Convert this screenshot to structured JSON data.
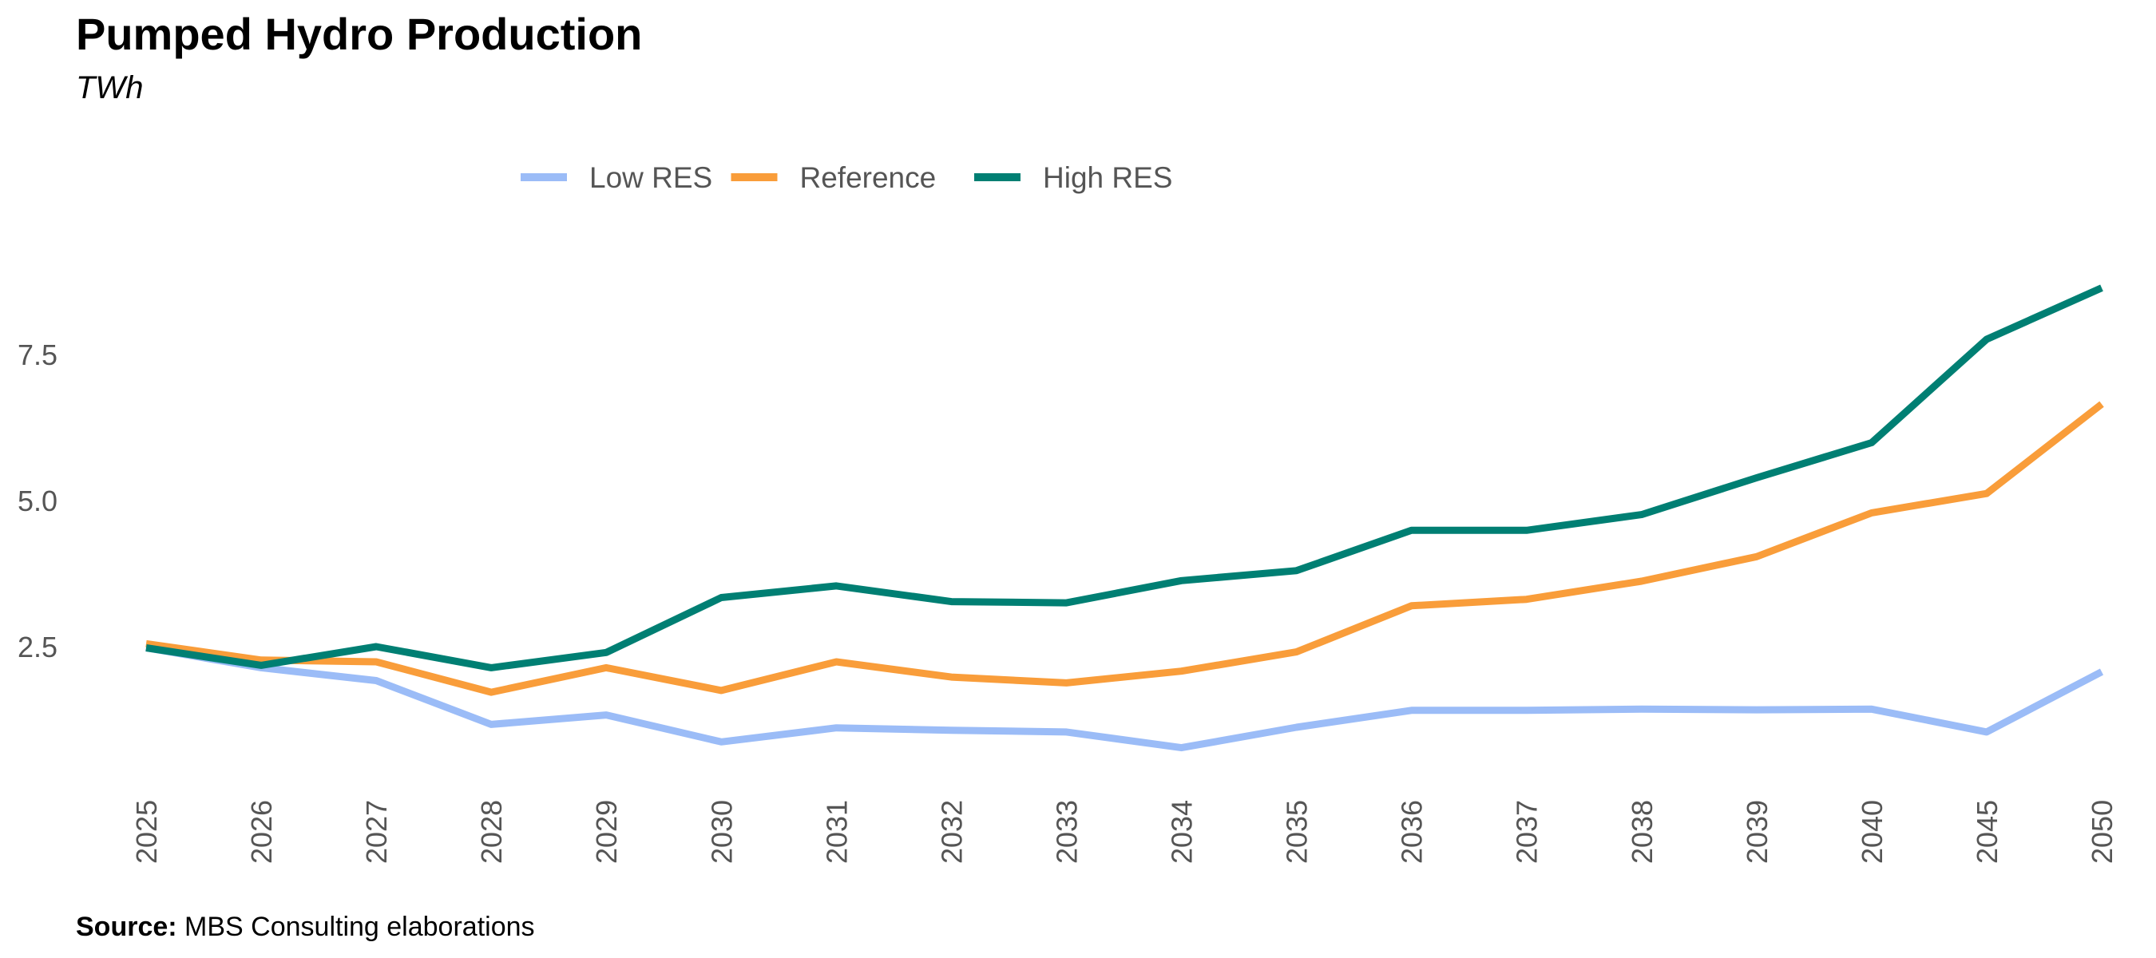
{
  "chart_data": {
    "type": "line",
    "title": "Pumped Hydro Production",
    "subtitle": "TWh",
    "xlabel": "",
    "ylabel": "",
    "categories": [
      "2025",
      "2026",
      "2027",
      "2028",
      "2029",
      "2030",
      "2031",
      "2032",
      "2033",
      "2034",
      "2035",
      "2036",
      "2037",
      "2038",
      "2039",
      "2040",
      "2045",
      "2050"
    ],
    "y_ticks": [
      2.5,
      5.0,
      7.5
    ],
    "y_tick_labels": [
      "2.5",
      "5.0",
      "7.5"
    ],
    "ylim": [
      0.3,
      9.5
    ],
    "grid": false,
    "legend_position": "top-center",
    "series": [
      {
        "name": "Low RES",
        "color": "#9bbcf7",
        "values": [
          2.48,
          2.14,
          1.92,
          1.17,
          1.33,
          0.87,
          1.11,
          1.07,
          1.04,
          0.77,
          1.12,
          1.41,
          1.41,
          1.43,
          1.42,
          1.43,
          1.04,
          2.07
        ]
      },
      {
        "name": "Reference",
        "color": "#f99d3a",
        "values": [
          2.55,
          2.27,
          2.24,
          1.72,
          2.14,
          1.75,
          2.24,
          1.98,
          1.88,
          2.08,
          2.41,
          3.2,
          3.31,
          3.62,
          4.04,
          4.79,
          5.12,
          6.65
        ]
      },
      {
        "name": "High RES",
        "color": "#007f73",
        "values": [
          2.48,
          2.18,
          2.5,
          2.14,
          2.4,
          3.34,
          3.54,
          3.27,
          3.25,
          3.63,
          3.8,
          4.49,
          4.49,
          4.76,
          5.39,
          5.99,
          7.76,
          8.64
        ]
      }
    ],
    "source_label": "Source:",
    "source_text": "MBS Consulting elaborations"
  }
}
